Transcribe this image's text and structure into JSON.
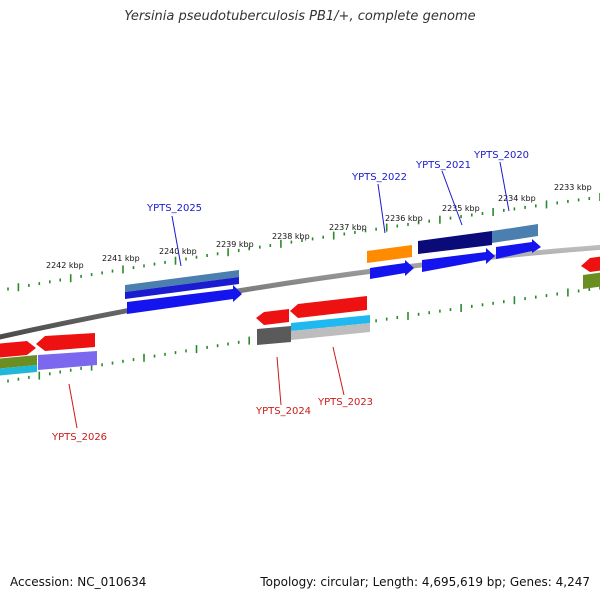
{
  "title": "Yersinia pseudotuberculosis PB1/+, complete genome",
  "footer": {
    "accession": "Accession: NC_010634",
    "topology": "Topology: circular; Length: 4,695,619 bp; Genes: 4,247"
  },
  "colors": {
    "backbone": "#7a7a7a",
    "ticks": "#2a8a2a",
    "forward_label": "#1a1acc",
    "reverse_label": "#cc1a1a"
  },
  "scale": {
    "labels": [
      "2242 kbp",
      "2241 kbp",
      "2240 kbp",
      "2239 kbp",
      "2238 kbp",
      "2237 kbp",
      "2236 kbp",
      "2235 kbp",
      "2234 kbp",
      "2233 kbp"
    ]
  },
  "gene_labels": {
    "forward": [
      "YPTS_2025",
      "YPTS_2022",
      "YPTS_2021",
      "YPTS_2020"
    ],
    "reverse": [
      "YPTS_2026",
      "YPTS_2024",
      "YPTS_2023"
    ]
  }
}
